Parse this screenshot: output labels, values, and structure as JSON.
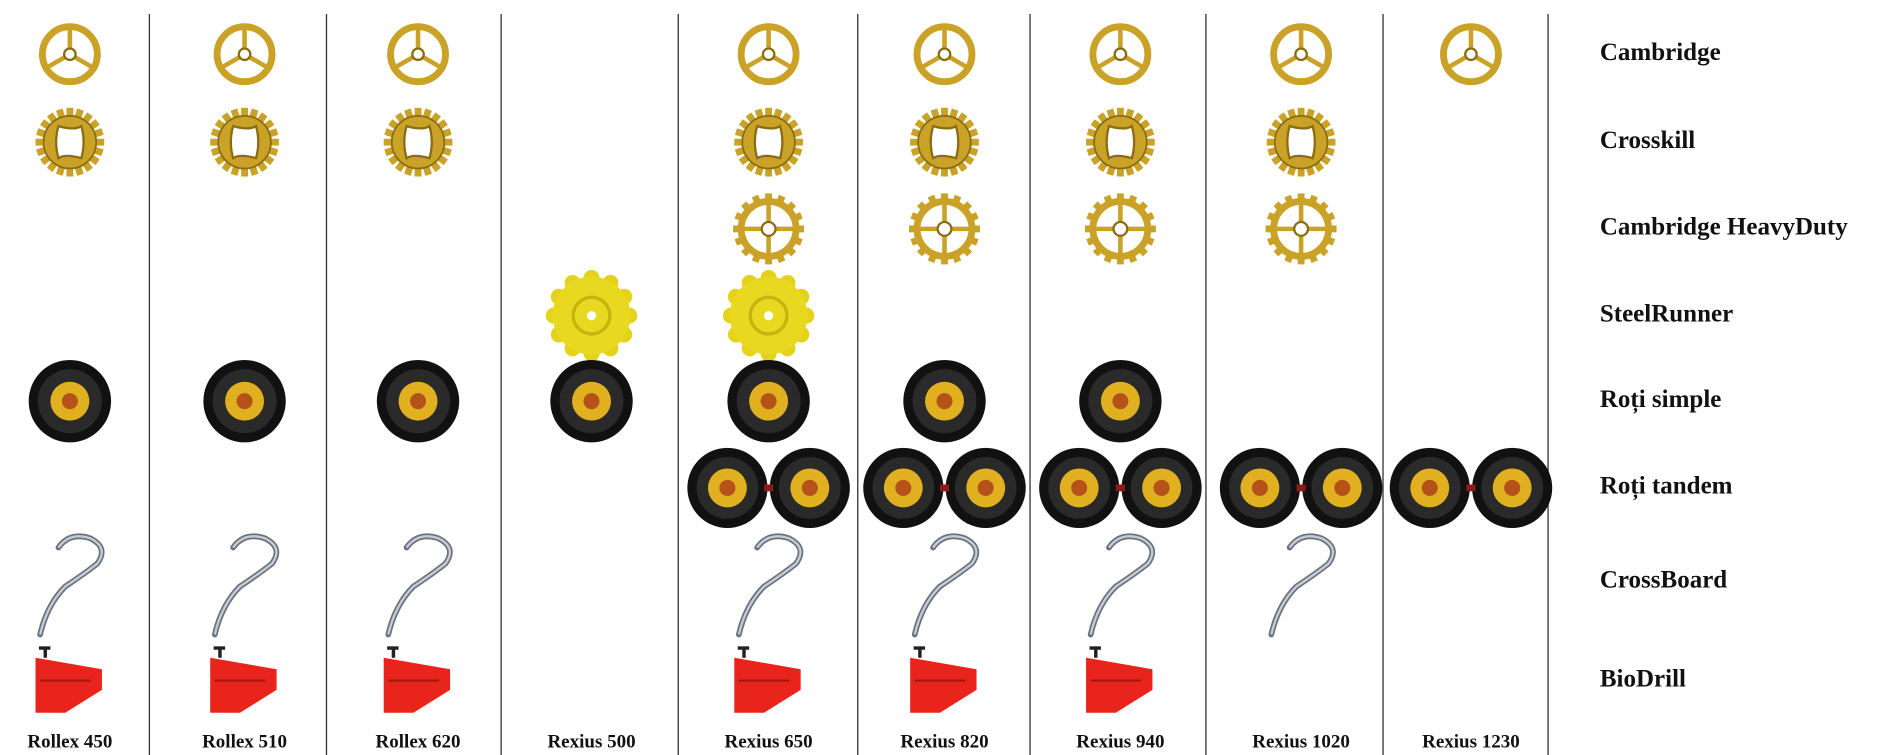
{
  "models": [
    "Rollex 450",
    "Rollex 510",
    "Rollex 620",
    "Rexius 500",
    "Rexius 650",
    "Rexius 820",
    "Rexius 940",
    "Rexius 1020",
    "Rexius 1230"
  ],
  "rows": [
    {
      "label": "Cambridge",
      "available": [
        true,
        true,
        true,
        false,
        true,
        true,
        true,
        true,
        true
      ]
    },
    {
      "label": "Crosskill",
      "available": [
        true,
        true,
        true,
        false,
        true,
        true,
        true,
        true,
        false
      ]
    },
    {
      "label": "Cambridge HeavyDuty",
      "available": [
        false,
        false,
        false,
        false,
        true,
        true,
        true,
        true,
        false
      ]
    },
    {
      "label": "SteelRunner",
      "available": [
        false,
        false,
        false,
        true,
        true,
        false,
        false,
        false,
        false
      ]
    },
    {
      "label": "Roți simple",
      "available": [
        true,
        true,
        true,
        true,
        true,
        true,
        true,
        false,
        false
      ]
    },
    {
      "label": "Roți tandem",
      "available": [
        false,
        false,
        false,
        false,
        true,
        true,
        true,
        true,
        true
      ]
    },
    {
      "label": "CrossBoard",
      "available": [
        true,
        true,
        true,
        false,
        true,
        true,
        true,
        true,
        false
      ]
    },
    {
      "label": "BioDrill",
      "available": [
        true,
        true,
        true,
        false,
        true,
        true,
        true,
        false,
        false
      ]
    }
  ]
}
